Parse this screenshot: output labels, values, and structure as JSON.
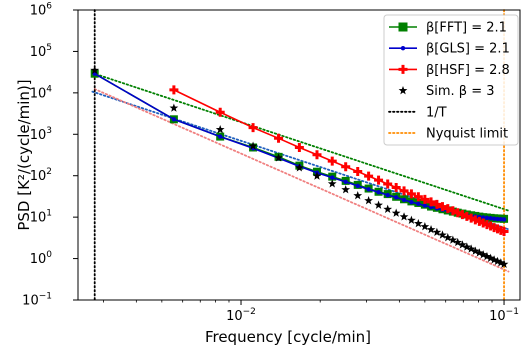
{
  "chart_data": {
    "type": "line",
    "xlabel": "Frequency [cycle/min]",
    "ylabel": "PSD [K²/(cycle/min)]",
    "xscale": "log",
    "yscale": "log",
    "xlim": [
      0.0024,
      0.115
    ],
    "ylim": [
      0.1,
      1000000
    ],
    "grid": false,
    "legend_position": "upper right",
    "x_ticks": [
      {
        "value": 0.01,
        "base": "10",
        "exp": "−2"
      },
      {
        "value": 0.1,
        "base": "10",
        "exp": "−1"
      }
    ],
    "y_ticks": [
      {
        "value": 0.1,
        "base": "10",
        "exp": "−1"
      },
      {
        "value": 1,
        "base": "10",
        "exp": "0"
      },
      {
        "value": 10,
        "base": "10",
        "exp": "1"
      },
      {
        "value": 100,
        "base": "10",
        "exp": "2"
      },
      {
        "value": 1000,
        "base": "10",
        "exp": "3"
      },
      {
        "value": 10000,
        "base": "10",
        "exp": "4"
      },
      {
        "value": 100000,
        "base": "10",
        "exp": "5"
      },
      {
        "value": 1000000,
        "base": "10",
        "exp": "6"
      }
    ],
    "fundamental_frequency": 0.002778,
    "harmonics": 36,
    "series": [
      {
        "name": "β[FFT] = 2.1",
        "color": "#008000",
        "marker": "square",
        "harmonic_start": 1,
        "fit": {
          "amplitude": 0.1237,
          "beta": 2.1,
          "color": "#008000"
        },
        "values": [
          29000,
          2300,
          880,
          480,
          285,
          175,
          125,
          95,
          75,
          60,
          49,
          41,
          36,
          31,
          27,
          24,
          22,
          20,
          18,
          16.8,
          15.5,
          14.5,
          13.6,
          12.8,
          12.2,
          11.6,
          11.1,
          10.7,
          10.3,
          10.0,
          9.8,
          9.6,
          9.4,
          9.3,
          9.2,
          9.1
        ]
      },
      {
        "name": "β[GLS] = 2.1",
        "color": "#0000cc",
        "marker": "dot",
        "harmonic_start": 1,
        "fit": {
          "amplitude": 0.0439,
          "beta": 2.1,
          "color": "#1f5fbf"
        },
        "values": [
          29000,
          2300,
          880,
          460,
          265,
          168,
          118,
          90,
          71,
          57,
          47,
          40,
          34,
          30,
          26,
          23,
          21,
          19,
          17.5,
          16.2,
          15.0,
          14.0,
          13.2,
          12.5,
          11.9,
          11.3,
          10.8,
          10.4,
          10.1,
          9.8,
          9.6,
          9.4,
          9.2,
          9.0,
          8.9,
          8.8
        ]
      },
      {
        "name": "β[HSF] = 2.8",
        "color": "#ff0000",
        "marker": "plus",
        "harmonic_start": 2,
        "fit": {
          "amplitude": 0.00086,
          "beta": 2.8,
          "color": "#f08080"
        },
        "values": [
          11800,
          3400,
          1450,
          800,
          480,
          320,
          225,
          165,
          126,
          98,
          78,
          63,
          52,
          43,
          36.5,
          31,
          26.8,
          23.3,
          20.4,
          18.0,
          16.0,
          14.3,
          12.8,
          11.5,
          10.4,
          9.5,
          8.6,
          7.9,
          7.2,
          6.6,
          6.1,
          5.6,
          5.2,
          4.8,
          4.5
        ]
      },
      {
        "name": "Sim. β = 3",
        "color": "#000000",
        "marker": "star",
        "harmonic_start": 1,
        "values": [
          35000,
          4300,
          1300,
          520,
          270,
          155,
          98,
          64,
          46,
          33,
          25,
          19.5,
          15.5,
          12.5,
          10.2,
          8.4,
          7.0,
          5.9,
          5.0,
          4.3,
          3.7,
          3.2,
          2.8,
          2.45,
          2.15,
          1.9,
          1.7,
          1.52,
          1.37,
          1.24,
          1.12,
          1.02,
          0.93,
          0.86,
          0.79,
          0.73
        ]
      }
    ],
    "reference_lines": [
      {
        "name": "1/T",
        "x": 0.002778,
        "style": "dotted",
        "color": "#000000"
      },
      {
        "name": "Nyquist limit",
        "x": 0.1,
        "style": "dotted",
        "color": "#ff8c00"
      }
    ]
  }
}
